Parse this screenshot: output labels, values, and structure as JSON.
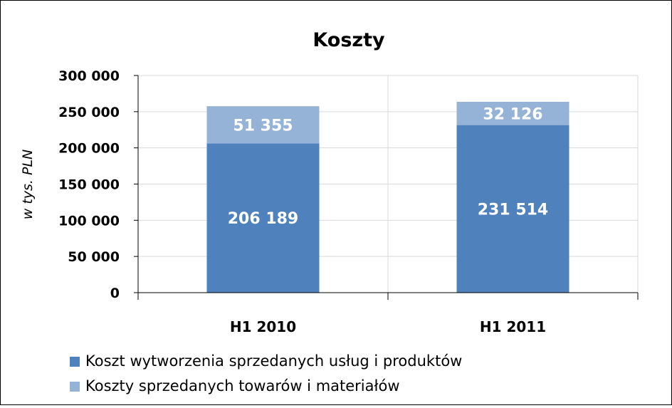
{
  "chart_data": {
    "type": "bar",
    "stacked": true,
    "title": "Koszty",
    "ylabel": "w tys. PLN",
    "xlabel": "",
    "categories": [
      "H1 2010",
      "H1 2011"
    ],
    "ylim": [
      0,
      300000
    ],
    "ytick_values": [
      0,
      50000,
      100000,
      150000,
      200000,
      250000,
      300000
    ],
    "ytick_labels": [
      "0",
      "50 000",
      "100 000",
      "150 000",
      "200 000",
      "250 000",
      "300 000"
    ],
    "grid": true,
    "legend_position": "bottom",
    "series": [
      {
        "name": "Koszt wytworzenia sprzedanych usług i produktów",
        "color": "#4f81bd",
        "values": [
          206189,
          231514
        ],
        "labels": [
          "206 189",
          "231 514"
        ]
      },
      {
        "name": "Koszty sprzedanych towarów i materiałów",
        "color": "#95b3d7",
        "values": [
          51355,
          32126
        ],
        "labels": [
          "51 355",
          "32 126"
        ]
      }
    ]
  }
}
